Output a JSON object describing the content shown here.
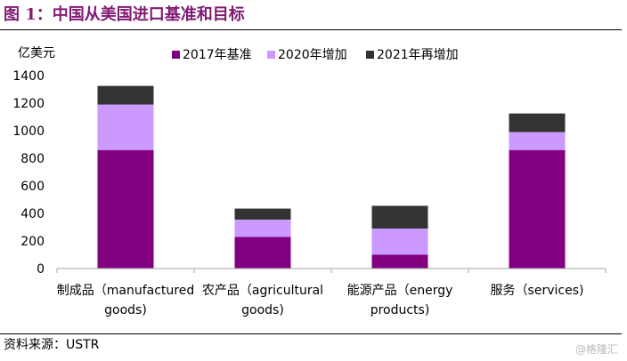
{
  "figure": {
    "title": "图 1：中国从美国进口基准和目标",
    "source": "资料来源：USTR",
    "watermark": "格隆汇"
  },
  "chart_data": {
    "type": "bar",
    "stacked": true,
    "ylabel": "亿美元",
    "ylim": [
      0,
      1400
    ],
    "yticks": [
      0,
      200,
      400,
      600,
      800,
      1000,
      1200,
      1400
    ],
    "grid": false,
    "legend_position": "top-center",
    "categories": [
      [
        "制成品（manufactured",
        "goods)"
      ],
      [
        "农产品（agricultural",
        "goods)"
      ],
      [
        "能源产品（energy",
        "products)"
      ],
      [
        "服务（services)"
      ]
    ],
    "series": [
      {
        "name": "2017年基准",
        "color": "#800080",
        "values": [
          860,
          230,
          100,
          860
        ]
      },
      {
        "name": "2020年增加",
        "color": "#cc99ff",
        "values": [
          330,
          125,
          190,
          130
        ]
      },
      {
        "name": "2021年再增加",
        "color": "#333333",
        "values": [
          135,
          80,
          165,
          135
        ]
      }
    ]
  }
}
